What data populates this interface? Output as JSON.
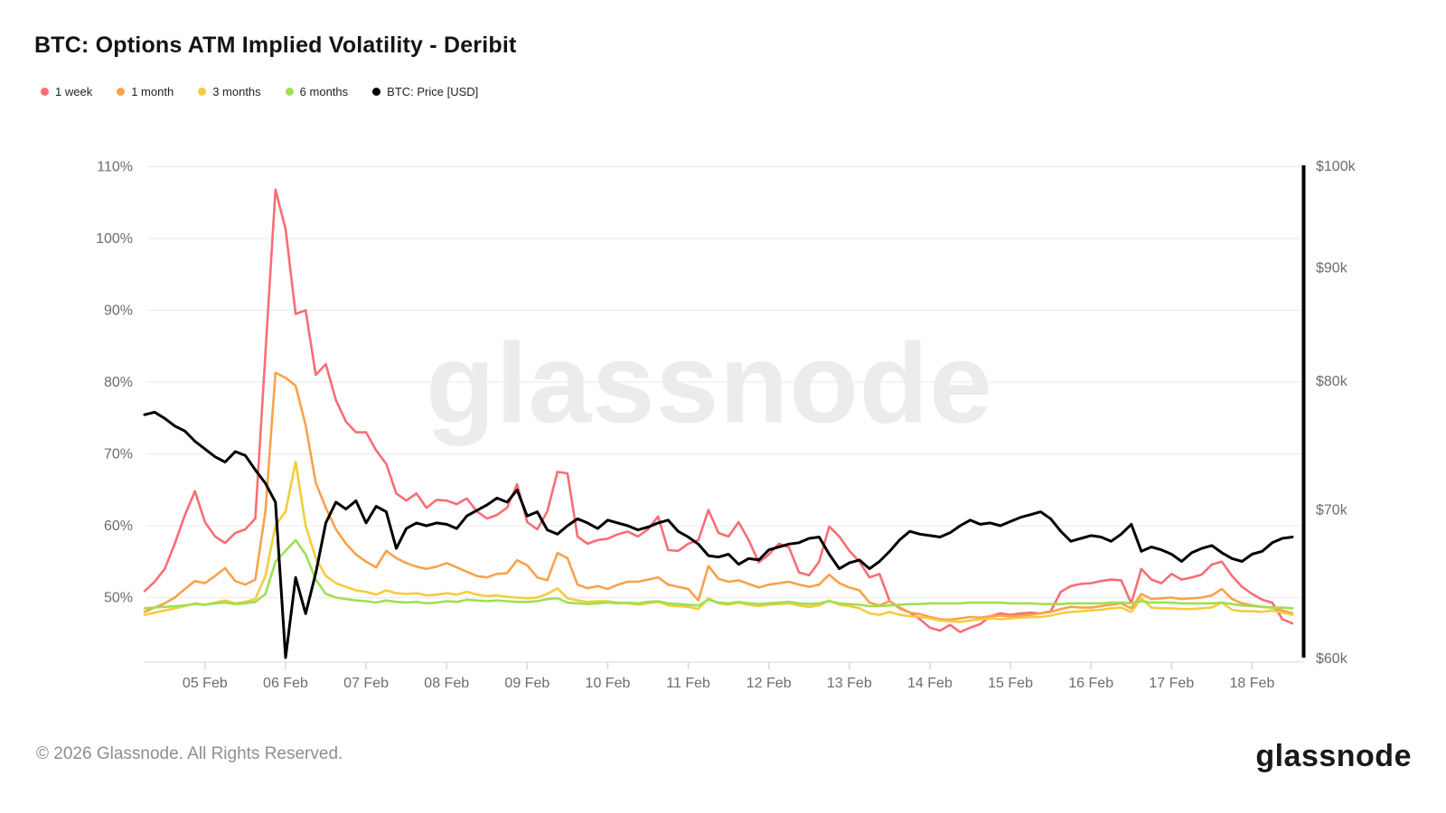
{
  "header": {
    "title": "BTC: Options ATM Implied Volatility - Deribit"
  },
  "watermark": "glassnode",
  "footer": {
    "copyright": "© 2026 Glassnode. All Rights Reserved.",
    "logo_text": "glassnode"
  },
  "colors": {
    "grid": "#ededed",
    "axis_text": "#6c6c6c",
    "tick": "#d8d8d8",
    "baseline": "#e6e6e6",
    "price_axis": "#000000"
  },
  "chart_data": {
    "type": "line",
    "title": "BTC: Options ATM Implied Volatility - Deribit",
    "x_axis": {
      "start": "04 Feb 06:00",
      "interval_hours": 3,
      "labels": [
        {
          "label": "05 Feb",
          "day": 5
        },
        {
          "label": "06 Feb",
          "day": 6
        },
        {
          "label": "07 Feb",
          "day": 7
        },
        {
          "label": "08 Feb",
          "day": 8
        },
        {
          "label": "09 Feb",
          "day": 9
        },
        {
          "label": "10 Feb",
          "day": 10
        },
        {
          "label": "11 Feb",
          "day": 11
        },
        {
          "label": "12 Feb",
          "day": 12
        },
        {
          "label": "13 Feb",
          "day": 13
        },
        {
          "label": "14 Feb",
          "day": 14
        },
        {
          "label": "15 Feb",
          "day": 15
        },
        {
          "label": "16 Feb",
          "day": 16
        },
        {
          "label": "17 Feb",
          "day": 17
        },
        {
          "label": "18 Feb",
          "day": 18
        }
      ]
    },
    "y_axis_left": {
      "unit": "%",
      "scale": "linear",
      "range": [
        41,
        111
      ],
      "ticks": [
        {
          "label": "110%",
          "value": 110
        },
        {
          "label": "100%",
          "value": 100
        },
        {
          "label": "90%",
          "value": 90
        },
        {
          "label": "80%",
          "value": 80
        },
        {
          "label": "70%",
          "value": 70
        },
        {
          "label": "60%",
          "value": 60
        },
        {
          "label": "50%",
          "value": 50
        }
      ]
    },
    "y_axis_right": {
      "unit": "USD",
      "scale": "log",
      "range_k": [
        60,
        100
      ],
      "ticks": [
        {
          "label": "$100k",
          "value": 100
        },
        {
          "label": "$90k",
          "value": 90
        },
        {
          "label": "$80k",
          "value": 80
        },
        {
          "label": "$70k",
          "value": 70
        },
        {
          "label": "$60k",
          "value": 60
        }
      ]
    },
    "series": [
      {
        "name": "1 week",
        "color": "#F86E75",
        "axis": "left",
        "values": [
          50.9,
          52.2,
          54.0,
          57.5,
          61.5,
          64.8,
          60.5,
          58.5,
          57.6,
          59.0,
          59.5,
          61.0,
          84.0,
          106.8,
          101.3,
          89.5,
          90.0,
          81.0,
          82.5,
          77.5,
          74.5,
          73.0,
          73.0,
          70.5,
          68.6,
          64.5,
          63.5,
          64.5,
          62.5,
          63.6,
          63.5,
          63.0,
          63.8,
          62.0,
          61.0,
          61.5,
          62.5,
          65.8,
          60.5,
          59.5,
          62.0,
          67.5,
          67.3,
          58.5,
          57.5,
          58.0,
          58.2,
          58.8,
          59.2,
          58.5,
          59.5,
          61.3,
          56.6,
          56.5,
          57.5,
          58.0,
          62.2,
          59.0,
          58.5,
          60.5,
          58.0,
          54.9,
          56.0,
          57.5,
          57.0,
          53.5,
          53.1,
          55.0,
          59.9,
          58.5,
          56.5,
          55.0,
          52.8,
          53.3,
          49.5,
          48.5,
          47.9,
          47.0,
          45.8,
          45.4,
          46.2,
          45.2,
          45.8,
          46.3,
          47.4,
          47.8,
          47.6,
          47.8,
          47.9,
          47.8,
          48.1,
          50.8,
          51.6,
          51.9,
          52.0,
          52.3,
          52.5,
          52.4,
          49.2,
          54.0,
          52.5,
          52.0,
          53.3,
          52.5,
          52.8,
          53.2,
          54.6,
          55.0,
          53.0,
          51.5,
          50.5,
          49.7,
          49.3,
          47.0,
          46.4
        ]
      },
      {
        "name": "1 month",
        "color": "#F9A24B",
        "axis": "left",
        "values": [
          48.0,
          48.6,
          49.2,
          50.0,
          51.2,
          52.3,
          52.0,
          53.0,
          54.1,
          52.3,
          51.8,
          52.5,
          62.0,
          81.3,
          80.6,
          79.5,
          74.0,
          66.0,
          62.5,
          59.5,
          57.5,
          56.0,
          55.0,
          54.2,
          56.5,
          55.5,
          54.8,
          54.3,
          54.0,
          54.3,
          54.8,
          54.2,
          53.6,
          53.0,
          52.8,
          53.3,
          53.4,
          55.2,
          54.5,
          52.8,
          52.4,
          56.2,
          55.5,
          51.8,
          51.3,
          51.6,
          51.2,
          51.8,
          52.2,
          52.2,
          52.5,
          52.8,
          51.8,
          51.5,
          51.2,
          49.6,
          54.4,
          52.6,
          52.2,
          52.4,
          51.9,
          51.4,
          51.8,
          52.0,
          52.2,
          51.8,
          51.5,
          51.8,
          53.2,
          52.0,
          51.4,
          51.0,
          49.3,
          48.9,
          49.5,
          48.6,
          47.9,
          47.7,
          47.3,
          47.0,
          46.9,
          47.1,
          47.3,
          47.2,
          47.4,
          47.5,
          47.4,
          47.5,
          47.6,
          47.8,
          48.0,
          48.4,
          48.7,
          48.6,
          48.6,
          48.8,
          49.0,
          49.2,
          48.5,
          50.5,
          49.8,
          49.9,
          50.0,
          49.8,
          49.9,
          50.0,
          50.3,
          51.2,
          49.8,
          49.2,
          48.9,
          48.7,
          48.6,
          48.2,
          47.8
        ]
      },
      {
        "name": "3 months",
        "color": "#F4CC3E",
        "axis": "left",
        "values": [
          47.6,
          47.9,
          48.2,
          48.5,
          48.8,
          49.2,
          49.0,
          49.3,
          49.6,
          49.2,
          49.4,
          49.8,
          53.0,
          60.0,
          62.0,
          68.9,
          60.0,
          55.5,
          53.0,
          52.0,
          51.5,
          51.0,
          50.8,
          50.4,
          51.0,
          50.6,
          50.5,
          50.6,
          50.3,
          50.4,
          50.6,
          50.4,
          50.8,
          50.4,
          50.2,
          50.3,
          50.1,
          50.0,
          49.9,
          50.0,
          50.5,
          51.3,
          49.9,
          49.6,
          49.4,
          49.5,
          49.5,
          49.3,
          49.2,
          49.0,
          49.2,
          49.4,
          48.9,
          48.8,
          48.7,
          48.4,
          49.9,
          49.2,
          49.0,
          49.3,
          49.0,
          48.8,
          49.0,
          49.1,
          49.2,
          48.9,
          48.7,
          48.9,
          49.6,
          49.0,
          48.8,
          48.5,
          47.8,
          47.6,
          48.0,
          47.6,
          47.4,
          47.3,
          47.1,
          46.8,
          46.7,
          46.6,
          46.8,
          47.0,
          47.1,
          47.0,
          47.1,
          47.2,
          47.3,
          47.3,
          47.5,
          47.8,
          48.0,
          48.1,
          48.2,
          48.3,
          48.5,
          48.6,
          48.0,
          49.9,
          48.6,
          48.5,
          48.5,
          48.4,
          48.4,
          48.5,
          48.6,
          49.3,
          48.3,
          48.1,
          48.1,
          48.0,
          48.2,
          47.9,
          47.6
        ]
      },
      {
        "name": "6 months",
        "color": "#9EE053",
        "axis": "left",
        "values": [
          48.5,
          48.6,
          48.7,
          48.8,
          48.9,
          49.1,
          49.0,
          49.2,
          49.3,
          49.1,
          49.2,
          49.4,
          50.5,
          55.0,
          56.5,
          58.0,
          56.0,
          52.5,
          50.5,
          50.0,
          49.8,
          49.6,
          49.5,
          49.3,
          49.6,
          49.4,
          49.3,
          49.4,
          49.2,
          49.3,
          49.5,
          49.4,
          49.7,
          49.6,
          49.5,
          49.6,
          49.5,
          49.4,
          49.4,
          49.5,
          49.8,
          49.9,
          49.3,
          49.2,
          49.1,
          49.2,
          49.3,
          49.2,
          49.3,
          49.2,
          49.4,
          49.5,
          49.2,
          49.1,
          49.0,
          48.9,
          49.7,
          49.3,
          49.2,
          49.4,
          49.2,
          49.1,
          49.2,
          49.3,
          49.4,
          49.2,
          49.1,
          49.2,
          49.5,
          49.2,
          49.1,
          49.0,
          48.8,
          48.8,
          48.9,
          49.0,
          49.1,
          49.1,
          49.2,
          49.2,
          49.2,
          49.2,
          49.3,
          49.3,
          49.3,
          49.3,
          49.2,
          49.2,
          49.2,
          49.1,
          49.1,
          49.1,
          49.2,
          49.2,
          49.2,
          49.2,
          49.3,
          49.3,
          49.2,
          49.5,
          49.3,
          49.3,
          49.3,
          49.2,
          49.2,
          49.2,
          49.2,
          49.3,
          49.1,
          48.9,
          48.8,
          48.7,
          48.6,
          48.6,
          48.5
        ]
      },
      {
        "name": "BTC: Price [USD]",
        "color": "#000000",
        "axis": "right",
        "values": [
          77.2,
          77.4,
          76.9,
          76.3,
          75.9,
          75.1,
          74.5,
          73.9,
          73.5,
          74.3,
          74.0,
          72.9,
          71.9,
          70.5,
          60.0,
          65.2,
          62.8,
          65.5,
          69.0,
          70.5,
          70.0,
          70.6,
          69.0,
          70.2,
          69.8,
          67.2,
          68.6,
          69.0,
          68.8,
          69.0,
          68.9,
          68.6,
          69.5,
          69.9,
          70.3,
          70.8,
          70.5,
          71.4,
          69.5,
          69.8,
          68.5,
          68.2,
          68.8,
          69.3,
          69.0,
          68.6,
          69.2,
          69.0,
          68.8,
          68.5,
          68.7,
          69.0,
          69.2,
          68.4,
          68.0,
          67.5,
          66.7,
          66.6,
          66.8,
          66.1,
          66.5,
          66.4,
          67.1,
          67.3,
          67.5,
          67.6,
          67.9,
          68.0,
          66.8,
          65.8,
          66.2,
          66.4,
          65.8,
          66.3,
          67.0,
          67.8,
          68.4,
          68.2,
          68.1,
          68.0,
          68.3,
          68.8,
          69.2,
          68.9,
          69.0,
          68.8,
          69.1,
          69.4,
          69.6,
          69.8,
          69.3,
          68.4,
          67.7,
          67.9,
          68.1,
          68.0,
          67.7,
          68.2,
          68.9,
          67.0,
          67.3,
          67.1,
          66.8,
          66.3,
          66.9,
          67.2,
          67.4,
          66.9,
          66.5,
          66.3,
          66.8,
          67.0,
          67.6,
          67.9,
          68.0
        ]
      }
    ]
  }
}
